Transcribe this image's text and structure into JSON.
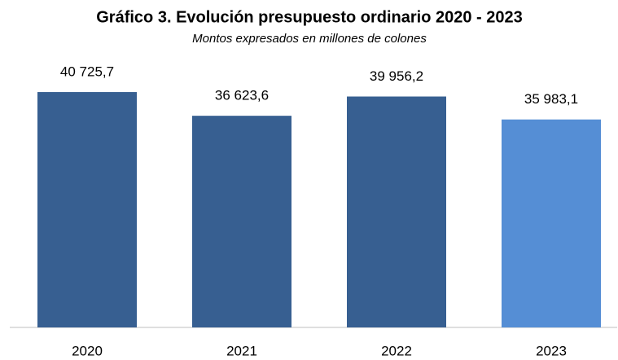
{
  "chart_data": {
    "type": "bar",
    "title": "Gráfico 3.  Evolución presupuesto ordinario 2020 - 2023",
    "subtitle": "Montos expresados en millones de colones",
    "categories": [
      "2020",
      "2021",
      "2022",
      "2023"
    ],
    "values": [
      40725.7,
      36623.6,
      39956.2,
      35983.1
    ],
    "value_labels": [
      "40 725,7",
      "36 623,6",
      "39 956,2",
      "35 983,1"
    ],
    "colors": [
      "#375f91",
      "#375f91",
      "#375f91",
      "#558ed5"
    ],
    "ylim": [
      0,
      42000
    ]
  }
}
